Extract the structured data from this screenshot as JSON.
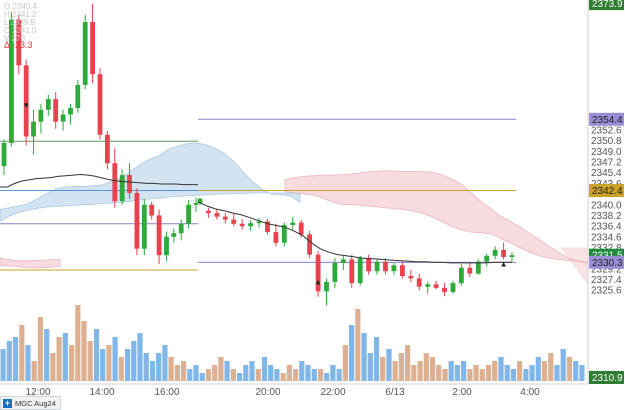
{
  "symbol_tab": {
    "label": "MGC Aug24"
  },
  "ohlc_legend": [
    "O 2340.4",
    "H 2341.2",
    "L 2339.9",
    "C 2341.0",
    "V 270"
  ],
  "delta_label": "Δ -23.3",
  "chart_data": {
    "type": "candlestick",
    "y_axis_ticks": [
      "2352.6",
      "2350.8",
      "2349.0",
      "2347.2",
      "2345.4",
      "2343.6",
      "2340.0",
      "2338.2",
      "2336.4",
      "2334.6",
      "2332.8",
      "2329.2",
      "2327.4",
      "2325.6"
    ],
    "x_axis_ticks": [
      "12:00",
      "14:00",
      "16:00",
      "20:00",
      "22:00",
      "6/13",
      "2:00",
      "4:00"
    ],
    "ylim": [
      2309.8,
      2374.5
    ],
    "price_badges": [
      {
        "label": "2373.9",
        "value": 2373.9,
        "color": "#2e7d32",
        "text_color": "#ffffff"
      },
      {
        "label": "2354.4",
        "value": 2354.4,
        "color": "#9c8cd6",
        "text_color": "#222222"
      },
      {
        "label": "2342.4",
        "value": 2342.4,
        "color": "#c9a227",
        "text_color": "#222222"
      },
      {
        "label": "2331.5",
        "value": 2331.5,
        "color": "#1f8a3a",
        "text_color": "#ffffff"
      },
      {
        "label": "2330.3",
        "value": 2330.3,
        "color": "#9c8cd6",
        "text_color": "#222222"
      },
      {
        "label": "2310.9",
        "value": 2310.9,
        "color": "#2e7d32",
        "text_color": "#ffffff"
      }
    ],
    "candles": [
      [
        2346.5,
        2351.0,
        2345.0,
        2350.4
      ],
      [
        2350.4,
        2372.5,
        2349.8,
        2371.2
      ],
      [
        2371.2,
        2372.0,
        2362.0,
        2363.5
      ],
      [
        2363.5,
        2364.5,
        2350.0,
        2351.5
      ],
      [
        2351.5,
        2356.0,
        2348.5,
        2354.0
      ],
      [
        2354.0,
        2357.0,
        2352.0,
        2356.0
      ],
      [
        2356.0,
        2358.5,
        2355.0,
        2357.8
      ],
      [
        2357.8,
        2359.0,
        2352.8,
        2354.0
      ],
      [
        2354.0,
        2356.0,
        2352.5,
        2355.2
      ],
      [
        2355.2,
        2357.0,
        2353.5,
        2356.3
      ],
      [
        2356.3,
        2361.0,
        2355.5,
        2360.2
      ],
      [
        2360.2,
        2372.0,
        2359.5,
        2370.8
      ],
      [
        2370.8,
        2373.9,
        2360.5,
        2362.0
      ],
      [
        2362.0,
        2363.0,
        2351.0,
        2351.8
      ],
      [
        2351.8,
        2352.5,
        2346.0,
        2347.0
      ],
      [
        2347.0,
        2349.5,
        2339.5,
        2340.6
      ],
      [
        2340.6,
        2346.0,
        2340.0,
        2345.0
      ],
      [
        2345.0,
        2347.0,
        2341.0,
        2342.0
      ],
      [
        2342.0,
        2342.8,
        2331.5,
        2332.6
      ],
      [
        2332.6,
        2341.0,
        2331.5,
        2340.0
      ],
      [
        2340.0,
        2340.5,
        2337.5,
        2338.2
      ],
      [
        2338.2,
        2339.2,
        2330.0,
        2331.5
      ],
      [
        2331.5,
        2335.5,
        2330.5,
        2334.6
      ],
      [
        2334.6,
        2336.0,
        2333.6,
        2335.2
      ],
      [
        2335.2,
        2337.5,
        2334.0,
        2336.8
      ],
      [
        2336.8,
        2340.8,
        2336.0,
        2340.0
      ],
      [
        2340.0,
        2341.2,
        2338.8,
        2340.3
      ],
      [
        2340.3,
        2341.2,
        2339.9,
        2341.0
      ],
      [
        2339.0,
        2339.5,
        2337.8,
        2338.6
      ],
      [
        2338.6,
        2339.2,
        2337.5,
        2338.0
      ],
      [
        2338.0,
        2338.6,
        2336.8,
        2337.5
      ],
      [
        2337.5,
        2338.4,
        2336.4,
        2336.8
      ],
      [
        2336.8,
        2337.6,
        2335.8,
        2336.4
      ],
      [
        2336.4,
        2337.4,
        2335.6,
        2336.9
      ],
      [
        2336.9,
        2337.8,
        2336.2,
        2337.2
      ],
      [
        2337.2,
        2337.6,
        2335.0,
        2335.4
      ],
      [
        2335.4,
        2336.8,
        2333.0,
        2333.6
      ],
      [
        2333.6,
        2337.0,
        2333.0,
        2336.6
      ],
      [
        2336.6,
        2338.0,
        2335.8,
        2337.0
      ],
      [
        2337.0,
        2337.4,
        2334.5,
        2335.0
      ],
      [
        2335.0,
        2335.6,
        2331.0,
        2331.6
      ],
      [
        2331.6,
        2332.2,
        2324.5,
        2325.4
      ],
      [
        2325.4,
        2327.6,
        2323.0,
        2327.0
      ],
      [
        2327.0,
        2331.0,
        2326.0,
        2330.2
      ],
      [
        2330.2,
        2331.4,
        2329.0,
        2330.8
      ],
      [
        2330.8,
        2331.6,
        2326.0,
        2326.8
      ],
      [
        2326.8,
        2331.4,
        2326.4,
        2331.0
      ],
      [
        2331.0,
        2331.6,
        2328.2,
        2328.8
      ],
      [
        2328.8,
        2331.0,
        2328.2,
        2330.4
      ],
      [
        2330.4,
        2331.0,
        2328.2,
        2328.8
      ],
      [
        2328.8,
        2330.2,
        2328.2,
        2329.8
      ],
      [
        2329.8,
        2330.4,
        2327.6,
        2328.0
      ],
      [
        2328.0,
        2329.0,
        2327.0,
        2327.6
      ],
      [
        2327.6,
        2328.4,
        2325.6,
        2326.2
      ],
      [
        2326.2,
        2327.0,
        2325.0,
        2326.6
      ],
      [
        2326.6,
        2327.2,
        2325.8,
        2326.0
      ],
      [
        2326.0,
        2326.8,
        2324.6,
        2325.3
      ],
      [
        2325.3,
        2327.2,
        2325.0,
        2326.8
      ],
      [
        2326.8,
        2330.0,
        2326.4,
        2329.4
      ],
      [
        2329.4,
        2330.2,
        2327.8,
        2328.4
      ],
      [
        2328.4,
        2330.8,
        2328.2,
        2330.4
      ],
      [
        2330.4,
        2331.8,
        2329.6,
        2331.4
      ],
      [
        2331.4,
        2333.0,
        2330.8,
        2332.4
      ],
      [
        2332.4,
        2333.6,
        2330.8,
        2331.2
      ],
      [
        2331.2,
        2332.0,
        2330.4,
        2331.5
      ]
    ],
    "vwap_line": [
      [
        2343.0,
        2343.0,
        2343.6,
        2344.0,
        2344.2,
        2344.4,
        2344.5,
        2344.6,
        2344.8,
        2344.9,
        2345.0,
        2345.1,
        2345.0,
        2344.8,
        2344.5,
        2344.2,
        2344.0,
        2343.9,
        2343.8,
        2343.7,
        2343.6,
        2343.6,
        2343.5,
        2343.5,
        2343.5,
        2343.4,
        2343.4,
        2343.4
      ],
      [
        2340.5,
        2339.8,
        2339.3,
        2339.0,
        2338.6,
        2338.3,
        2337.8,
        2337.3,
        2336.8,
        2336.5,
        2336.2,
        2335.6,
        2334.8,
        2333.6,
        2332.6,
        2332.0,
        2331.6,
        2331.4,
        2331.2,
        2331.0,
        2330.9,
        2330.8,
        2330.7,
        2330.6,
        2330.5,
        2330.4,
        2330.4,
        2330.3,
        2330.3,
        2330.2,
        2330.2,
        2330.2,
        2330.2,
        2330.2,
        2330.3,
        2330.3,
        2330.3
      ]
    ],
    "cloud_blue": {
      "top": [
        2339.2,
        2339.5,
        2339.8,
        2340.2,
        2341.0,
        2341.9,
        2342.7,
        2343.0,
        2343.1,
        2343.1,
        2343.2,
        2343.4,
        2344.0,
        2344.6,
        2345.7,
        2346.8,
        2347.7,
        2348.3,
        2349.4,
        2349.9,
        2350.3,
        2350.4,
        2350.1,
        2349.5,
        2348.6,
        2347.2,
        2345.4,
        2343.8,
        2342.6,
        2341.8,
        2341.7,
        2341.5,
        2340.4
      ],
      "bottom": [
        2337.2,
        2338.1,
        2338.7,
        2339.1,
        2339.4,
        2339.6,
        2339.7,
        2339.8,
        2339.9,
        2340.0,
        2340.1,
        2340.2,
        2340.3,
        2340.4,
        2340.6,
        2340.8,
        2341.0,
        2341.1,
        2341.3,
        2341.4,
        2341.5,
        2341.6,
        2341.7,
        2341.8,
        2341.8,
        2341.9,
        2341.9,
        2342.0,
        2342.0,
        2342.0,
        2342.0,
        2342.0,
        2341.9
      ]
    },
    "cloud_red": {
      "top": [
        2344.2,
        2344.6,
        2344.8,
        2344.9,
        2345.0,
        2345.0,
        2345.1,
        2345.2,
        2345.4,
        2345.6,
        2345.7,
        2345.7,
        2345.6,
        2345.6,
        2345.6,
        2345.5,
        2345.1,
        2344.4,
        2343.5,
        2342.1,
        2340.6,
        2339.4,
        2338.1,
        2337.3,
        2336.3,
        2335.2,
        2334.2,
        2333.0,
        2332.0,
        2331.0,
        2330.6,
        2330.3
      ],
      "bottom": [
        2342.2,
        2342.0,
        2341.8,
        2341.6,
        2341.0,
        2340.4,
        2340.0,
        2340.0,
        2339.9,
        2339.7,
        2339.5,
        2339.4,
        2339.2,
        2339.0,
        2338.6,
        2338.0,
        2337.2,
        2336.4,
        2335.8,
        2335.4,
        2335.3,
        2335.1,
        2334.4,
        2333.6,
        2332.8,
        2332.0,
        2331.4,
        2331.0,
        2330.8,
        2330.6,
        2330.4,
        2330.2
      ]
    },
    "cloud_red_tail": [
      2331.8,
      2331.7,
      2331.6
    ],
    "volumes": [
      8,
      10,
      11,
      14,
      9,
      5,
      16,
      13,
      7,
      11,
      12,
      9,
      19,
      15,
      10,
      13,
      8,
      9,
      11,
      6,
      8,
      10,
      12,
      7,
      5,
      7,
      9,
      6,
      4,
      5,
      3,
      4,
      2,
      3,
      4,
      6,
      5,
      3,
      2,
      4,
      5,
      3,
      6,
      4,
      3,
      2,
      4,
      3,
      5,
      4,
      3,
      3,
      2,
      4,
      3,
      9,
      14,
      18,
      12,
      7,
      11,
      6,
      8,
      5,
      7,
      9,
      4,
      5,
      7,
      6,
      4,
      3,
      5,
      4,
      5,
      3,
      4,
      3,
      4,
      5,
      6,
      4,
      3,
      5,
      3,
      4,
      6,
      5,
      7,
      4,
      8,
      6,
      5,
      4
    ]
  },
  "markers": [
    {
      "label": "▲",
      "kind": "up"
    },
    {
      "label": "▲",
      "kind": "up"
    },
    {
      "label": "▼",
      "kind": "down"
    }
  ]
}
